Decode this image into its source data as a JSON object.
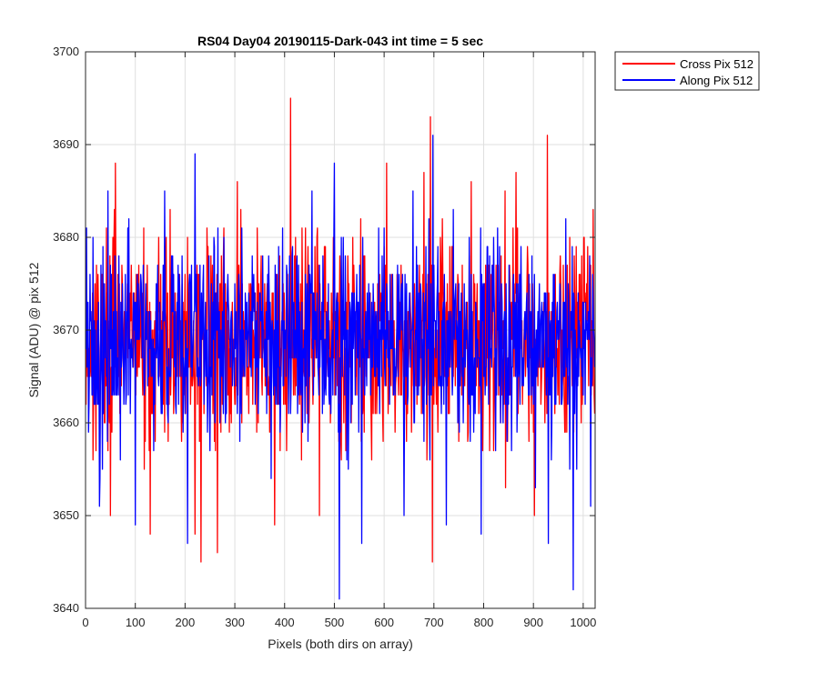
{
  "chart_data": {
    "type": "line",
    "title": "RS04 Day04 20190115-Dark-043 int time = 5 sec",
    "xlabel": "Pixels (both dirs on array)",
    "ylabel": "Signal (ADU) @ pix 512",
    "xlim": [
      0,
      1024
    ],
    "ylim": [
      3640,
      3700
    ],
    "xticks": [
      0,
      100,
      200,
      300,
      400,
      500,
      600,
      700,
      800,
      900,
      1000
    ],
    "yticks": [
      3640,
      3650,
      3660,
      3670,
      3680,
      3690,
      3700
    ],
    "grid": true,
    "legend_position": "outside-top-right",
    "n_points": 1024,
    "series": [
      {
        "name": "Cross Pix 512",
        "color": "#ff0000",
        "mean": 3669,
        "spread": 5.5,
        "seed": 17,
        "values": [
          3668,
          3662,
          3674,
          3671,
          3665,
          3669
        ],
        "extremes": [
          {
            "x": 50,
            "y": 3650
          },
          {
            "x": 60,
            "y": 3688
          },
          {
            "x": 130,
            "y": 3648
          },
          {
            "x": 170,
            "y": 3683
          },
          {
            "x": 220,
            "y": 3648
          },
          {
            "x": 232,
            "y": 3645
          },
          {
            "x": 265,
            "y": 3646
          },
          {
            "x": 305,
            "y": 3686
          },
          {
            "x": 380,
            "y": 3649
          },
          {
            "x": 412,
            "y": 3695
          },
          {
            "x": 470,
            "y": 3650
          },
          {
            "x": 605,
            "y": 3688
          },
          {
            "x": 680,
            "y": 3687
          },
          {
            "x": 693,
            "y": 3693
          },
          {
            "x": 697,
            "y": 3645
          },
          {
            "x": 775,
            "y": 3686
          },
          {
            "x": 865,
            "y": 3687
          },
          {
            "x": 902,
            "y": 3650
          },
          {
            "x": 928,
            "y": 3691
          },
          {
            "x": 1020,
            "y": 3683
          }
        ]
      },
      {
        "name": "Along Pix 512",
        "color": "#0000ff",
        "mean": 3669,
        "spread": 5.5,
        "seed": 91,
        "values": [
          3672,
          3668,
          3681,
          3666,
          3670,
          3673
        ],
        "extremes": [
          {
            "x": 28,
            "y": 3651
          },
          {
            "x": 45,
            "y": 3685
          },
          {
            "x": 100,
            "y": 3649
          },
          {
            "x": 220,
            "y": 3689
          },
          {
            "x": 205,
            "y": 3647
          },
          {
            "x": 455,
            "y": 3685
          },
          {
            "x": 510,
            "y": 3641
          },
          {
            "x": 500,
            "y": 3688
          },
          {
            "x": 555,
            "y": 3647
          },
          {
            "x": 640,
            "y": 3650
          },
          {
            "x": 698,
            "y": 3691
          },
          {
            "x": 725,
            "y": 3649
          },
          {
            "x": 795,
            "y": 3648
          },
          {
            "x": 930,
            "y": 3647
          },
          {
            "x": 980,
            "y": 3642
          },
          {
            "x": 1015,
            "y": 3651
          }
        ]
      }
    ]
  }
}
